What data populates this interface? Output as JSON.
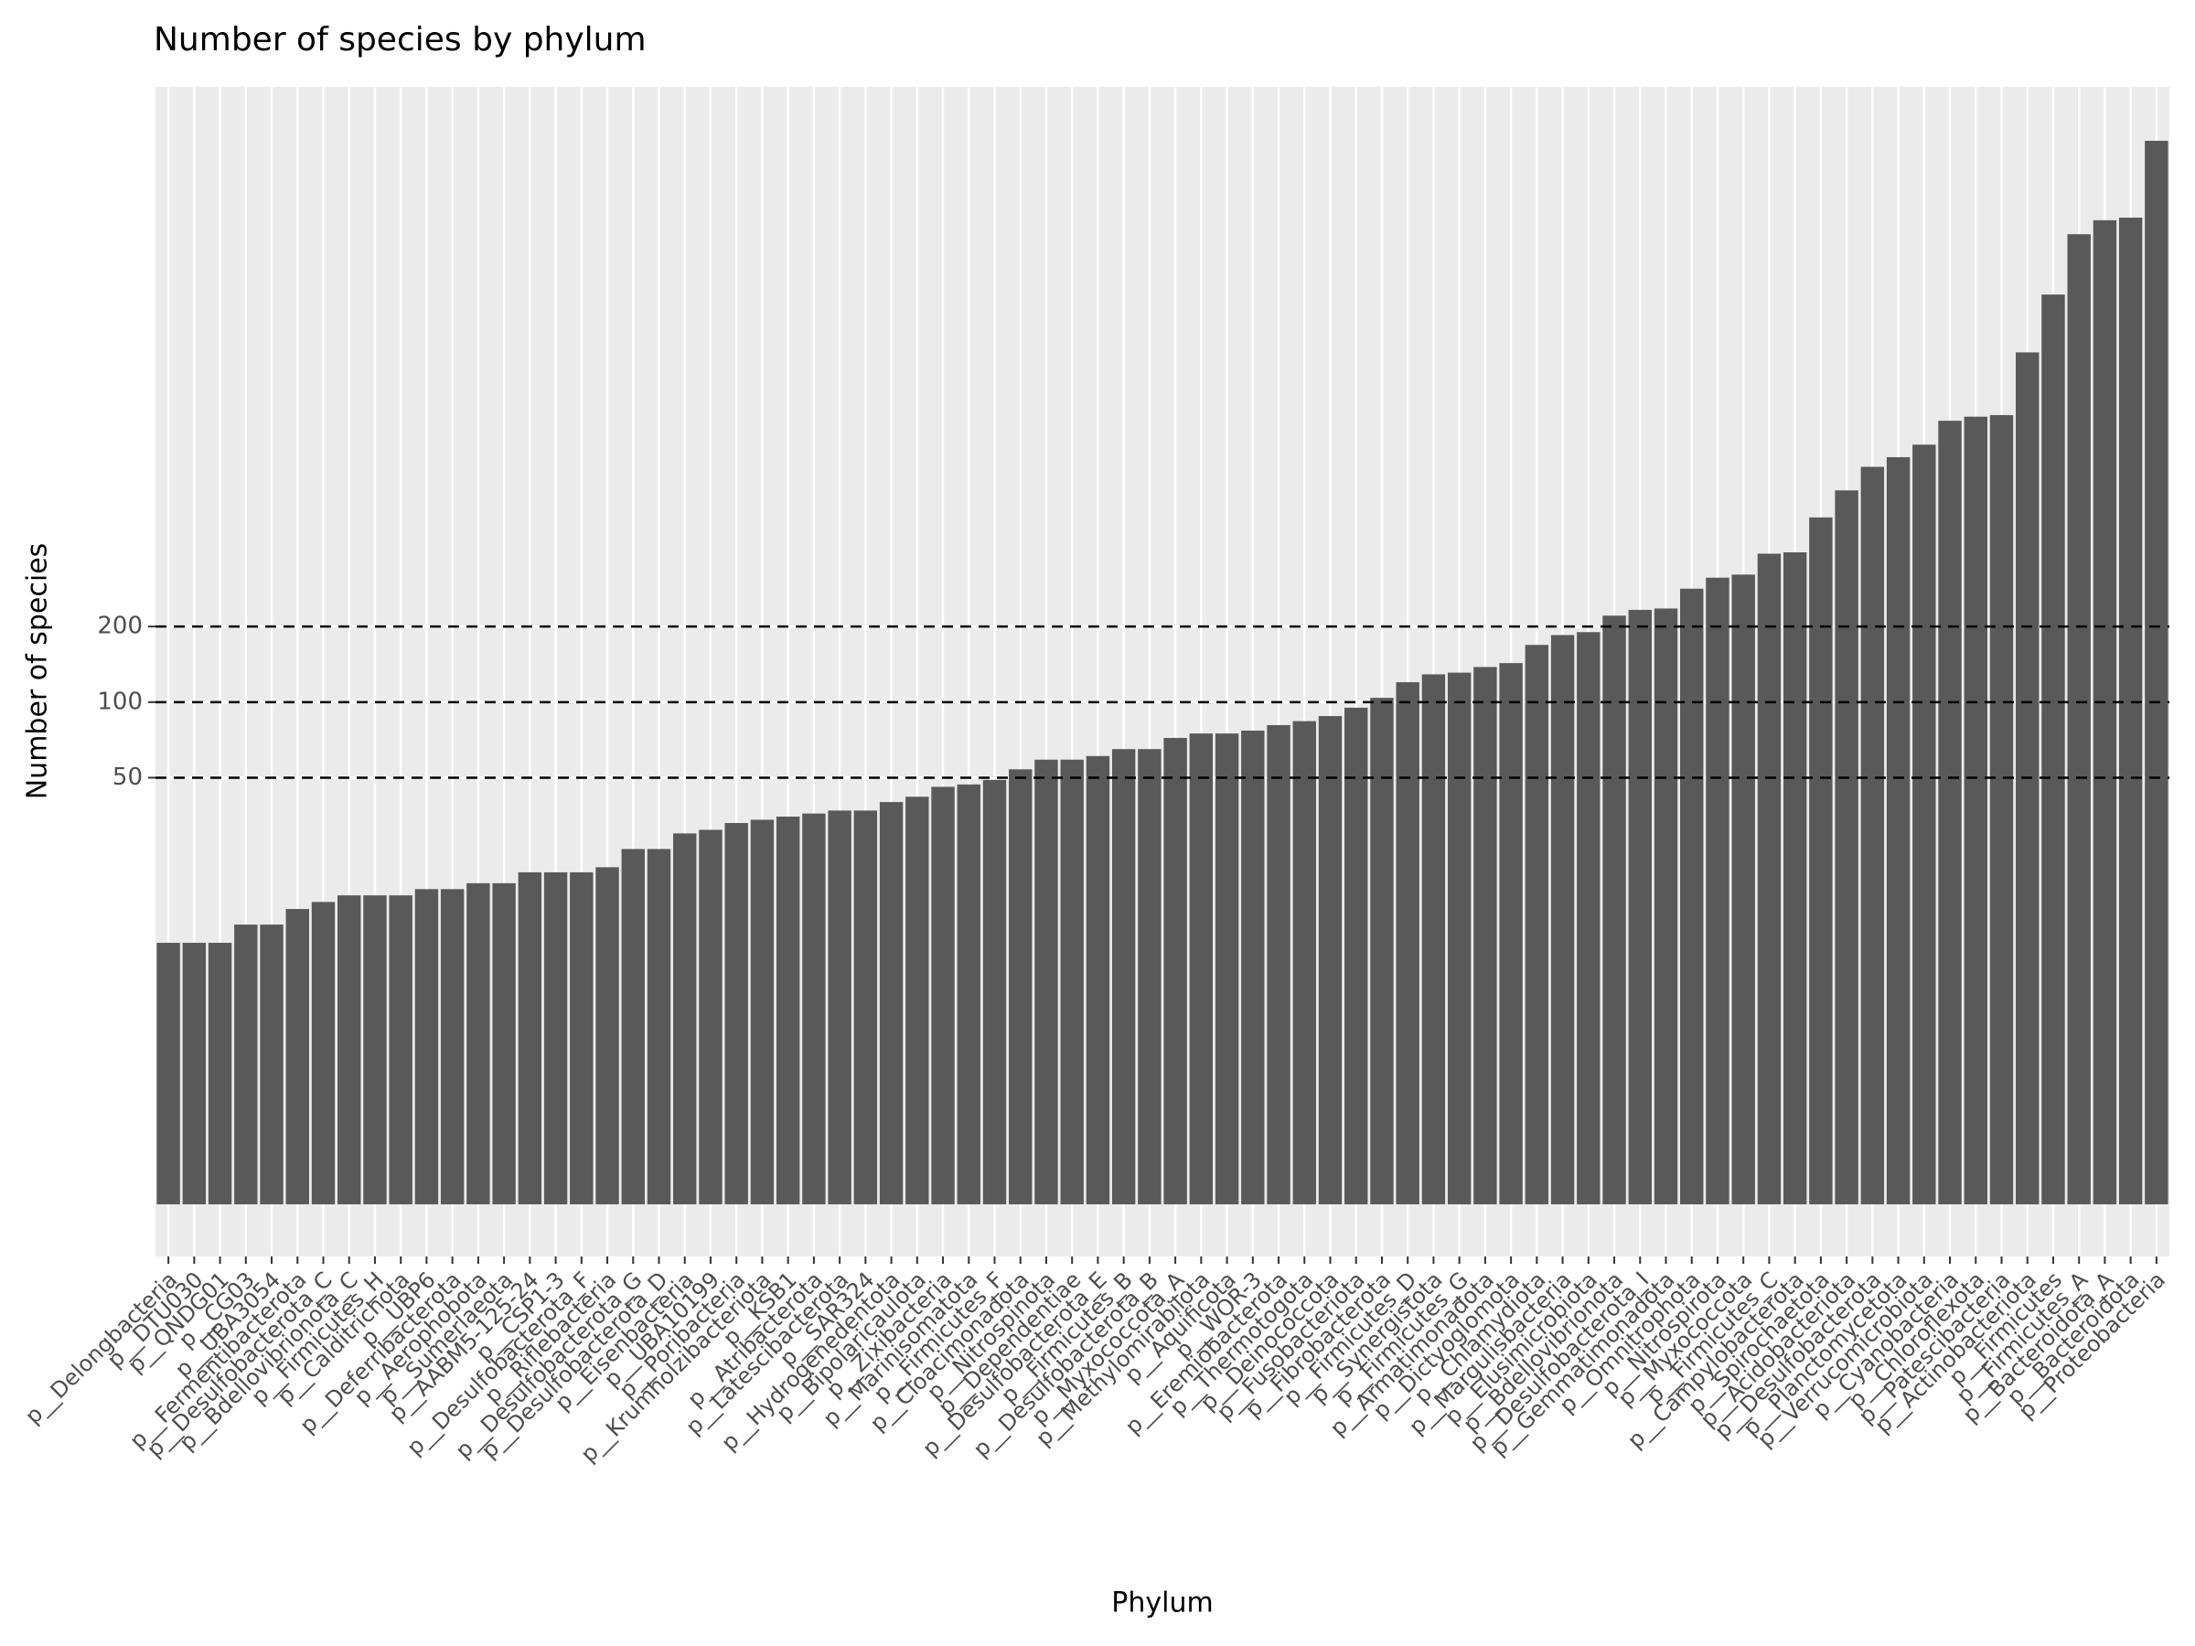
{
  "chart_data": {
    "type": "bar",
    "title": "Number of species by phylum",
    "x_label": "Phylum",
    "y_label": "Number of species",
    "categories": [
      "p__Delongbacteria",
      "p__DTU030",
      "p__QNDG01",
      "p__CG03",
      "p__UBA3054",
      "p__Fermentibacterota",
      "p__Desulfobacterota_C",
      "p__Bdellovibrionota_C",
      "p__Firmicutes_H",
      "p__Calditrichota",
      "p__UBP6",
      "p__Deferribacterota",
      "p__Aerophobota",
      "p__Sumerlaeota",
      "p__AABM5-125-24",
      "p__CSP1-3",
      "p__Desulfobacterota_F",
      "p__Riflebacteria",
      "p__Desulfobacterota_G",
      "p__Desulfobacterota_D",
      "p__Eisenbacteria",
      "p__UBA10199",
      "p__Poribacteria",
      "p__Krumholzibacteriota",
      "p__KSB1",
      "p__Atribacterota",
      "p__Latescibacterota",
      "p__SAR324",
      "p__Hydrogenedentota",
      "p__Bipolaricaulota",
      "p__Zixibacteria",
      "p__Marinisomatota",
      "p__Firmicutes_F",
      "p__Cloacimonadota",
      "p__Nitrospinota",
      "p__Dependentiae",
      "p__Desulfobacterota_E",
      "p__Firmicutes_B",
      "p__Desulfobacterota_B",
      "p__Myxococcota_A",
      "p__Methylomirabilota",
      "p__Aquificota",
      "p__WOR-3",
      "p__Eremiobacterota",
      "p__Thermotogota",
      "p__Deinococcota",
      "p__Fusobacteriota",
      "p__Fibrobacterota",
      "p__Firmicutes_D",
      "p__Synergistota",
      "p__Firmicutes_G",
      "p__Armatimonadota",
      "p__Dictyoglomota",
      "p__Chlamydiota",
      "p__Margulisbacteria",
      "p__Elusimicrobiota",
      "p__Bdellovibrionota",
      "p__Desulfobacterota_I",
      "p__Gemmatimonadota",
      "p__Omnitrophota",
      "p__Nitrospirota",
      "p__Myxococcota",
      "p__Firmicutes_C",
      "p__Campylobacterota",
      "p__Spirochaetota",
      "p__Acidobacteriota",
      "p__Desulfobacterota",
      "p__Planctomycetota",
      "p__Verrucomicrobiota",
      "p__Cyanobacteria",
      "p__Chloroflexota",
      "p__Patescibacteria",
      "p__Actinobacteriota",
      "p__Firmicutes",
      "p__Firmicutes_A",
      "p__Bacteroidota_A",
      "p__Bacteroidota",
      "p__Proteobacteria"
    ],
    "values": [
      11,
      11,
      11,
      13,
      13,
      15,
      16,
      17,
      17,
      17,
      18,
      18,
      19,
      19,
      21,
      21,
      21,
      22,
      26,
      26,
      30,
      31,
      33,
      34,
      35,
      36,
      37,
      37,
      40,
      42,
      46,
      47,
      49,
      54,
      59,
      59,
      61,
      65,
      65,
      72,
      75,
      75,
      77,
      81,
      84,
      88,
      95,
      104,
      120,
      129,
      131,
      138,
      143,
      169,
      185,
      190,
      221,
      233,
      236,
      283,
      313,
      322,
      390,
      395,
      544,
      697,
      865,
      945,
      1060,
      1320,
      1370,
      1390,
      2470,
      4200,
      7300,
      8300,
      8500,
      17200
    ],
    "color": "#595959",
    "ylim": [
      0.62,
      28200
    ],
    "yticks": [
      50,
      100,
      200
    ],
    "log_scale": true,
    "grid": true
  }
}
